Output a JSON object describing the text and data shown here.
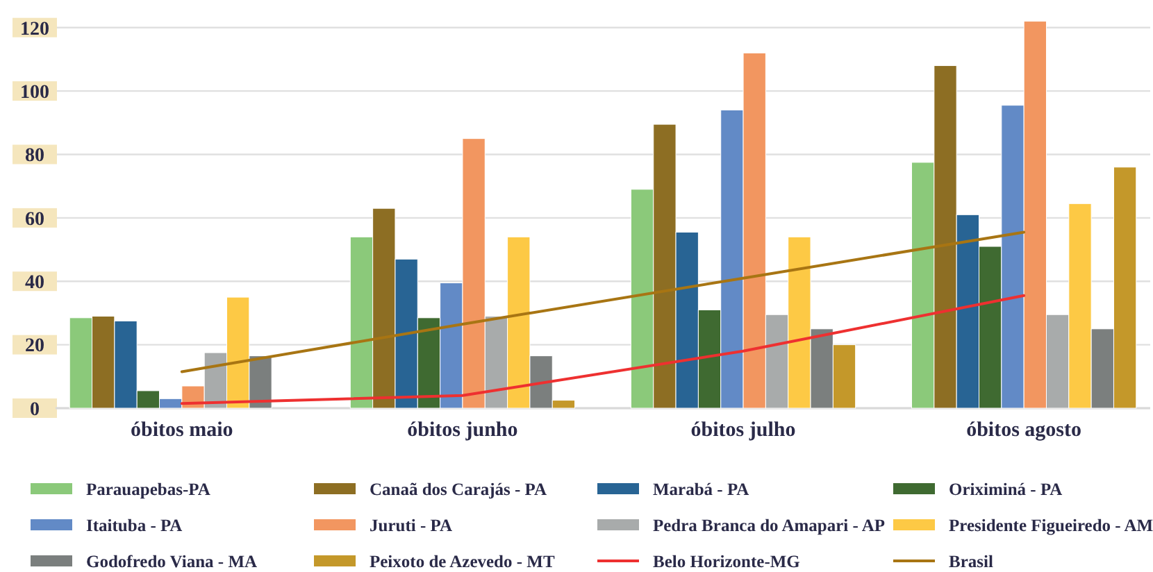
{
  "chart_data": {
    "type": "bar",
    "categories": [
      "óbitos maio",
      "óbitos junho",
      "óbitos julho",
      "óbitos agosto"
    ],
    "series": [
      {
        "name": "Parauapebas-PA",
        "color": "#8bc97a",
        "values": [
          28.5,
          54,
          69,
          77.5
        ]
      },
      {
        "name": "Canaã dos Carajás - PA",
        "color": "#8d6e23",
        "values": [
          29,
          63,
          89.5,
          108
        ]
      },
      {
        "name": "Marabá - PA",
        "color": "#286494",
        "values": [
          27.5,
          47,
          55.5,
          61
        ]
      },
      {
        "name": "Oriximiná - PA",
        "color": "#3f6a31",
        "values": [
          5.5,
          28.5,
          31,
          51
        ]
      },
      {
        "name": "Itaituba - PA",
        "color": "#628ac6",
        "values": [
          3,
          39.5,
          94,
          95.5
        ]
      },
      {
        "name": "Juruti - PA",
        "color": "#f29660",
        "values": [
          7,
          85,
          112,
          122
        ]
      },
      {
        "name": "Pedra Branca do Amapari - AP",
        "color": "#a8abab",
        "values": [
          17.5,
          29,
          29.5,
          29.5
        ]
      },
      {
        "name": "Presidente Figueiredo - AM",
        "color": "#fdc945",
        "values": [
          35,
          54,
          54,
          64.5
        ]
      },
      {
        "name": "Godofredo Viana - MA",
        "color": "#7b7f7e",
        "values": [
          16.5,
          16.5,
          25,
          25
        ]
      },
      {
        "name": "Peixoto de Azevedo - MT",
        "color": "#c4982a",
        "values": [
          0,
          2.5,
          20,
          76
        ]
      },
      {
        "name": "Belo Horizonte-MG",
        "color": "#ee3030",
        "type": "line",
        "values": [
          1.5,
          4,
          18,
          35.5
        ]
      },
      {
        "name": "Brasil",
        "color": "#a87513",
        "type": "line",
        "values": [
          11.5,
          26.5,
          41,
          55.5
        ]
      }
    ],
    "ylim": [
      0,
      123
    ],
    "yticks": [
      0,
      20,
      40,
      60,
      80,
      100,
      120
    ],
    "grid": "y",
    "legend": "bottom"
  }
}
